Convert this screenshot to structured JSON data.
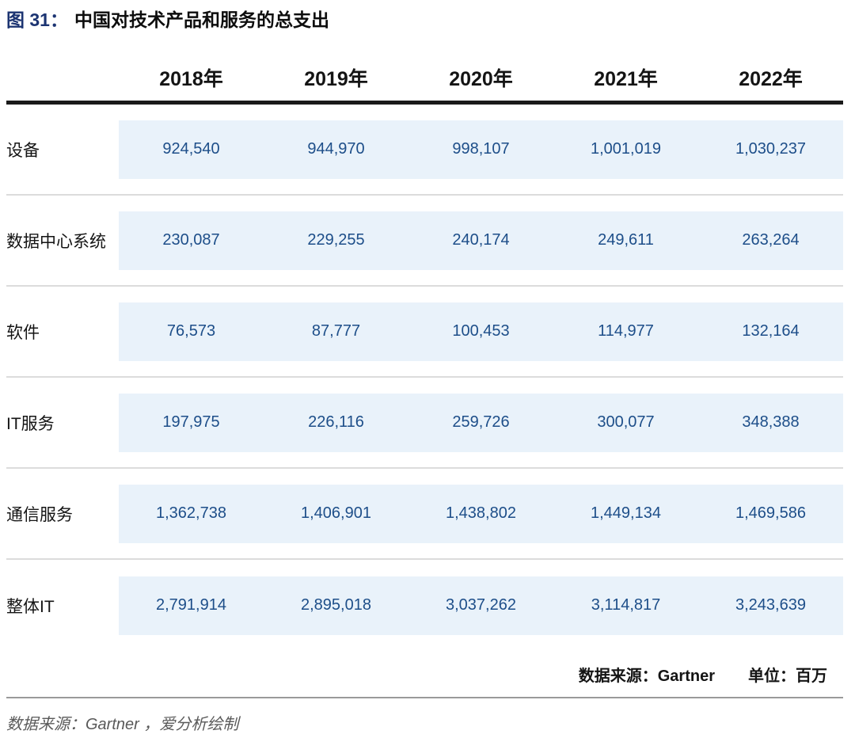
{
  "figure": {
    "label": "图 31：",
    "title": "中国对技术产品和服务的总支出"
  },
  "table": {
    "col_headers": [
      "2018年",
      "2019年",
      "2020年",
      "2021年",
      "2022年"
    ],
    "rows": [
      {
        "label": "设备",
        "values": [
          "924,540",
          "944,970",
          "998,107",
          "1,001,019",
          "1,030,237"
        ]
      },
      {
        "label": "数据中心系统",
        "values": [
          "230,087",
          "229,255",
          "240,174",
          "249,611",
          "263,264"
        ]
      },
      {
        "label": "软件",
        "values": [
          "76,573",
          "87,777",
          "100,453",
          "114,977",
          "132,164"
        ]
      },
      {
        "label": "IT服务",
        "values": [
          "197,975",
          "226,116",
          "259,726",
          "300,077",
          "348,388"
        ]
      },
      {
        "label": "通信服务",
        "values": [
          "1,362,738",
          "1,406,901",
          "1,438,802",
          "1,449,134",
          "1,469,586"
        ]
      },
      {
        "label": "整体IT",
        "values": [
          "2,791,914",
          "2,895,018",
          "3,037,262",
          "3,114,817",
          "3,243,639"
        ]
      }
    ],
    "footer": {
      "source": "数据来源：Gartner",
      "unit": "单位：百万"
    }
  },
  "caption": "数据来源：Gartner ，爱分析绘制",
  "colors": {
    "accent_blue": "#1c3472",
    "value_blue": "#1d4e89",
    "band_blue": "#e9f2fa"
  },
  "chart_data": {
    "type": "table",
    "title": "中国对技术产品和服务的总支出",
    "figure_number": "图 31",
    "categories": [
      "2018年",
      "2019年",
      "2020年",
      "2021年",
      "2022年"
    ],
    "series": [
      {
        "name": "设备",
        "values": [
          924540,
          944970,
          998107,
          1001019,
          1030237
        ]
      },
      {
        "name": "数据中心系统",
        "values": [
          230087,
          229255,
          240174,
          249611,
          263264
        ]
      },
      {
        "name": "软件",
        "values": [
          76573,
          87777,
          100453,
          114977,
          132164
        ]
      },
      {
        "name": "IT服务",
        "values": [
          197975,
          226116,
          259726,
          300077,
          348388
        ]
      },
      {
        "name": "通信服务",
        "values": [
          1362738,
          1406901,
          1438802,
          1449134,
          1469586
        ]
      },
      {
        "name": "整体IT",
        "values": [
          2791914,
          2895018,
          3037262,
          3114817,
          3243639
        ]
      }
    ],
    "unit": "百万",
    "source": "Gartner"
  }
}
